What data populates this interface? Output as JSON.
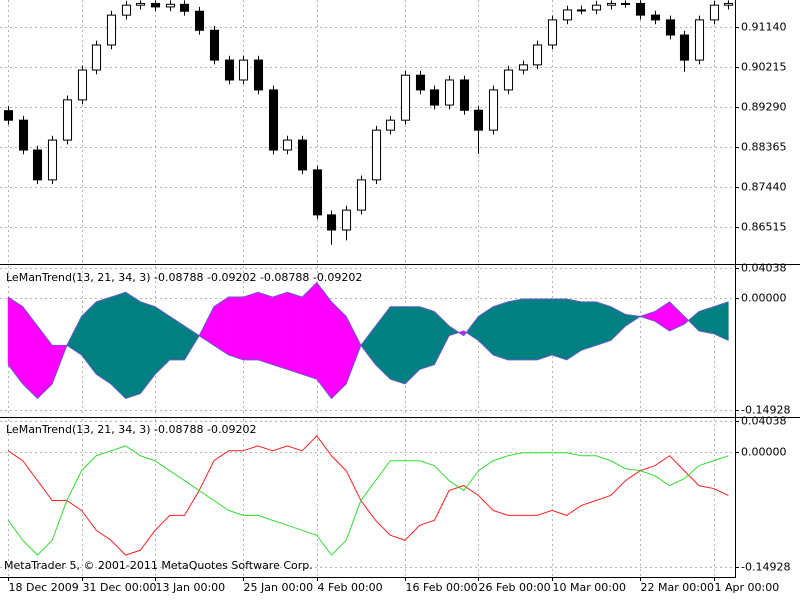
{
  "chart_data": [
    {
      "type": "candlestick",
      "grid": true,
      "up_color": "#ffffff",
      "down_color": "#000000",
      "line_color": "#000000",
      "ylim": [
        0.85677,
        0.9176
      ],
      "yticks": [
        {
          "value": 0.9114,
          "label": "0.91140"
        },
        0.90215,
        {
          "value": 0.8929,
          "label": "0.89290"
        },
        0.88365,
        {
          "value": 0.8744,
          "label": "0.87440"
        },
        0.86515
      ],
      "open": [
        0.892,
        0.8898,
        0.8829,
        0.876,
        0.8852,
        0.8945,
        0.9014,
        0.9072,
        0.9141,
        0.9164,
        0.9168,
        0.916,
        0.9166,
        0.915,
        0.9106,
        0.9037,
        0.8991,
        0.9037,
        0.8968,
        0.8829,
        0.8852,
        0.8783,
        0.8679,
        0.8644,
        0.869,
        0.876,
        0.8875,
        0.8898,
        0.9002,
        0.8968,
        0.8933,
        0.8991,
        0.8921,
        0.8875,
        0.8968,
        0.9014,
        0.9026,
        0.9072,
        0.913,
        0.9153,
        0.9153,
        0.9164,
        0.9168,
        0.9168,
        0.9141,
        0.913,
        0.9095,
        0.9037,
        0.913,
        0.9164
      ],
      "high": [
        0.893,
        0.8908,
        0.8839,
        0.8862,
        0.8955,
        0.9024,
        0.9082,
        0.9151,
        0.9174,
        0.9175,
        0.9175,
        0.9175,
        0.9175,
        0.916,
        0.9116,
        0.9047,
        0.9047,
        0.9047,
        0.8978,
        0.8862,
        0.8862,
        0.8793,
        0.8689,
        0.87,
        0.877,
        0.8885,
        0.8908,
        0.9012,
        0.9012,
        0.8978,
        0.9001,
        0.9001,
        0.8931,
        0.8978,
        0.9024,
        0.9036,
        0.9082,
        0.914,
        0.9163,
        0.9163,
        0.9174,
        0.9175,
        0.9175,
        0.9175,
        0.9151,
        0.914,
        0.9105,
        0.914,
        0.9174,
        0.9175
      ],
      "low": [
        0.8888,
        0.8819,
        0.875,
        0.875,
        0.8842,
        0.8935,
        0.9004,
        0.9062,
        0.9131,
        0.9154,
        0.915,
        0.915,
        0.914,
        0.9096,
        0.9027,
        0.8981,
        0.8981,
        0.8958,
        0.8819,
        0.8819,
        0.8773,
        0.8669,
        0.861,
        0.862,
        0.868,
        0.875,
        0.8865,
        0.8888,
        0.8958,
        0.8923,
        0.8923,
        0.8911,
        0.882,
        0.8865,
        0.8958,
        0.9004,
        0.9016,
        0.9062,
        0.912,
        0.9143,
        0.9143,
        0.9154,
        0.9158,
        0.9131,
        0.912,
        0.9085,
        0.901,
        0.9027,
        0.912,
        0.9154
      ],
      "close": [
        0.8898,
        0.8829,
        0.876,
        0.8852,
        0.8945,
        0.9014,
        0.9072,
        0.9141,
        0.9164,
        0.9168,
        0.916,
        0.9166,
        0.915,
        0.9106,
        0.9037,
        0.8991,
        0.9037,
        0.8968,
        0.8829,
        0.8852,
        0.8783,
        0.8679,
        0.8644,
        0.869,
        0.876,
        0.8875,
        0.8898,
        0.9002,
        0.8968,
        0.8933,
        0.8991,
        0.8921,
        0.8875,
        0.8968,
        0.9014,
        0.9026,
        0.9072,
        0.913,
        0.9153,
        0.9153,
        0.9164,
        0.9168,
        0.9168,
        0.9141,
        0.913,
        0.9095,
        0.9037,
        0.913,
        0.9164,
        0.9168
      ]
    },
    {
      "type": "area-fill",
      "grid": true,
      "title": "LeManTrend(13, 21, 34, 3) -0.08788 -0.09202 -0.08788 -0.09202",
      "up_color": "#ff00ff",
      "down_color": "#008080",
      "edge_color": "#6a5acd",
      "ylim": [
        -0.1573,
        0.0427
      ],
      "yticks": [
        0.04038,
        {
          "value": 0,
          "label": "0.00000"
        },
        -0.14928
      ]
    },
    {
      "type": "line",
      "grid": true,
      "title": "LeManTrend(13, 21, 34, 3) -0.08788 -0.09202",
      "note": "MetaTrader 5, © 2001-2011 MetaQuotes Software Corp.",
      "ylim": [
        -0.1609,
        0.0425
      ],
      "yticks": [
        0.04038,
        {
          "value": 0,
          "label": "0.00000"
        },
        -0.14928
      ],
      "xlim": [
        -0.55,
        49.45
      ],
      "xticks": [
        {
          "value": 0,
          "label": "18 Dec 2009"
        },
        {
          "value": 5,
          "label": "31 Dec 00:00"
        },
        {
          "value": 10,
          "label": "13 Jan 00:00"
        },
        {
          "value": 16,
          "label": "25 Jan 00:00"
        },
        {
          "value": 21,
          "label": "4 Feb 00:00"
        },
        {
          "value": 27,
          "label": "16 Feb 00:00"
        },
        {
          "value": 32,
          "label": "26 Feb 00:00"
        },
        {
          "value": 37,
          "label": "10 Mar 00:00"
        },
        {
          "value": 43,
          "label": "22 Mar 00:00"
        },
        {
          "value": 48,
          "label": "1 Apr 00:00"
        }
      ],
      "series": [
        {
          "color": "#ff2020",
          "values": [
            0.0013,
            -0.0116,
            -0.0373,
            -0.0631,
            -0.0631,
            -0.0759,
            -0.1017,
            -0.1146,
            -0.1339,
            -0.1274,
            -0.1017,
            -0.0824,
            -0.0824,
            -0.0502,
            -0.0116,
            0.0013,
            0.0013,
            0.0077,
            0.0013,
            0.0077,
            0.0013,
            0.0206,
            -0.0051,
            -0.0245,
            -0.0631,
            -0.0888,
            -0.1081,
            -0.1146,
            -0.0952,
            -0.0888,
            -0.0502,
            -0.0438,
            -0.0566,
            -0.0759,
            -0.0824,
            -0.0824,
            -0.0824,
            -0.0759,
            -0.0824,
            -0.0695,
            -0.0631,
            -0.0566,
            -0.0373,
            -0.0245,
            -0.018,
            -0.0051,
            -0.0245,
            -0.0438,
            -0.0476,
            -0.0566
          ]
        },
        {
          "color": "#33dd33",
          "values": [
            -0.0888,
            -0.1146,
            -0.1339,
            -0.1146,
            -0.0631,
            -0.0245,
            -0.0051,
            0.0013,
            0.0077,
            -0.0051,
            -0.0116,
            -0.0245,
            -0.0373,
            -0.0502,
            -0.0631,
            -0.0759,
            -0.0824,
            -0.0824,
            -0.0888,
            -0.0952,
            -0.1017,
            -0.1081,
            -0.1339,
            -0.1146,
            -0.0631,
            -0.0373,
            -0.0116,
            -0.0116,
            -0.0116,
            -0.018,
            -0.0373,
            -0.0502,
            -0.0245,
            -0.0116,
            -0.0051,
            -0.0013,
            -0.0013,
            -0.0013,
            -0.0013,
            -0.0051,
            -0.0051,
            -0.0116,
            -0.0219,
            -0.0245,
            -0.0309,
            -0.0438,
            -0.0347,
            -0.018,
            -0.0116,
            -0.0051
          ]
        }
      ]
    }
  ]
}
